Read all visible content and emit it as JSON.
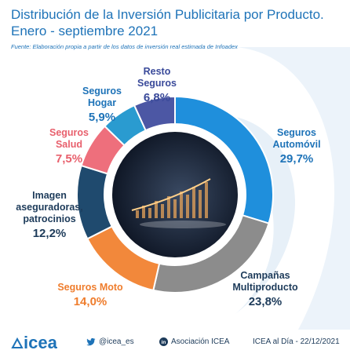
{
  "header": {
    "title_line1": "Distribución de la Inversión Publicitaria por Producto.",
    "title_line2": "Enero - septiembre 2021",
    "source": "Fuente: Elaboración propia a partir de los datos de inversión real estimada de Infoadex"
  },
  "chart_data": {
    "type": "pie",
    "variant": "donut",
    "unit": "%",
    "segments": [
      {
        "label_lines": [
          "Seguros",
          "Automóvil"
        ],
        "value": 29.7,
        "value_text": "29,7%",
        "color": "#1f8fdc",
        "label_color": "#1e73b8"
      },
      {
        "label_lines": [
          "Campañas",
          "Multiproducto"
        ],
        "value": 23.8,
        "value_text": "23,8%",
        "color": "#8c8c8c",
        "label_color": "#1d3b5a"
      },
      {
        "label_lines": [
          "Seguros Moto"
        ],
        "value": 14.0,
        "value_text": "14,0%",
        "color": "#f2883b",
        "label_color": "#ef7d2d"
      },
      {
        "label_lines": [
          "Imagen",
          "aseguradoras,",
          "patrocinios"
        ],
        "value": 12.2,
        "value_text": "12,2%",
        "color": "#1f4a6e",
        "label_color": "#1d3b5a"
      },
      {
        "label_lines": [
          "Seguros",
          "Salud"
        ],
        "value": 7.5,
        "value_text": "7,5%",
        "color": "#ee6f7c",
        "label_color": "#e8606d"
      },
      {
        "label_lines": [
          "Seguros",
          "Hogar"
        ],
        "value": 5.9,
        "value_text": "5,9%",
        "color": "#2a9bd0",
        "label_color": "#1e73b8"
      },
      {
        "label_lines": [
          "Resto",
          "Seguros"
        ],
        "value": 6.8,
        "value_text": "6,8%",
        "color": "#4c57a4",
        "label_color": "#3a4a9a"
      }
    ]
  },
  "footer": {
    "logo_text": "icea",
    "twitter": "@icea_es",
    "linkedin": "Asociación ICEA",
    "date_text": "ICEA al Día - 22/12/2021"
  }
}
